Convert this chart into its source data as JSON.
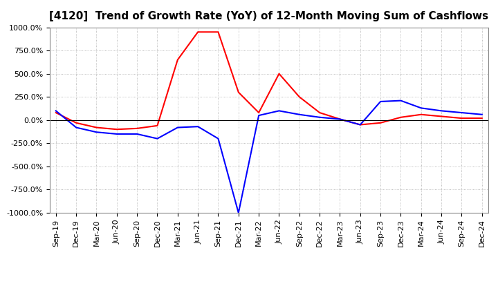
{
  "title": "[4120]  Trend of Growth Rate (YoY) of 12-Month Moving Sum of Cashflows",
  "ylim": [
    -1000,
    1000
  ],
  "yticks": [
    1000.0,
    750.0,
    500.0,
    250.0,
    0.0,
    -250.0,
    -500.0,
    -750.0,
    -1000.0
  ],
  "xlabel_dates": [
    "Sep-19",
    "Dec-19",
    "Mar-20",
    "Jun-20",
    "Sep-20",
    "Dec-20",
    "Mar-21",
    "Jun-21",
    "Sep-21",
    "Dec-21",
    "Mar-22",
    "Jun-22",
    "Sep-22",
    "Dec-22",
    "Mar-23",
    "Jun-23",
    "Sep-23",
    "Dec-23",
    "Mar-24",
    "Jun-24",
    "Sep-24",
    "Dec-24"
  ],
  "operating_cf": [
    80,
    -30,
    -80,
    -100,
    -90,
    -60,
    650,
    950,
    950,
    300,
    80,
    500,
    250,
    80,
    10,
    -50,
    -30,
    30,
    60,
    40,
    20,
    20
  ],
  "free_cf": [
    100,
    -80,
    -130,
    -150,
    -150,
    -200,
    -80,
    -70,
    -200,
    -1000,
    50,
    100,
    60,
    30,
    10,
    -50,
    200,
    210,
    130,
    100,
    80,
    60
  ],
  "operating_color": "#ff0000",
  "free_color": "#0000ff",
  "grid_color": "#aaaaaa",
  "background_color": "#ffffff",
  "title_fontsize": 11,
  "tick_fontsize": 8,
  "legend_fontsize": 9
}
